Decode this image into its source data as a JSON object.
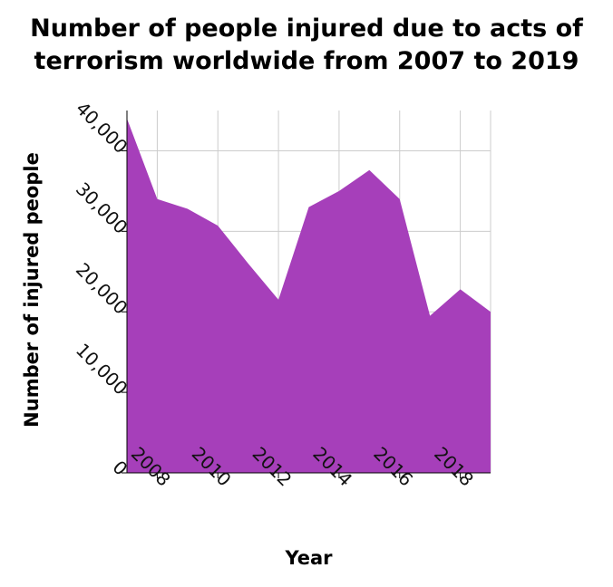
{
  "chart_data": {
    "type": "area",
    "title": [
      "Number of people injured due to acts of",
      "terrorism worldwide from 2007 to 2019"
    ],
    "xlabel": "Year",
    "ylabel": "Number of injured people",
    "x": [
      2007,
      2008,
      2009,
      2010,
      2011,
      2012,
      2013,
      2014,
      2015,
      2016,
      2017,
      2018,
      2019
    ],
    "values": [
      44000,
      34000,
      32800,
      30700,
      26000,
      21500,
      33000,
      35000,
      37600,
      34000,
      19500,
      22800,
      20000
    ],
    "xlim": [
      2007,
      2019
    ],
    "ylim": [
      0,
      45000
    ],
    "xticks": [
      2008,
      2010,
      2012,
      2014,
      2016,
      2018
    ],
    "xtick_labels": [
      "2008",
      "2010",
      "2012",
      "2014",
      "2016",
      "2018"
    ],
    "yticks": [
      0,
      10000,
      20000,
      30000,
      40000
    ],
    "ytick_labels": [
      "0",
      "10,000",
      "20,000",
      "30,000",
      "40,000"
    ],
    "grid": true,
    "fill_color": "#a63fba",
    "grid_color": "#cccccc"
  }
}
